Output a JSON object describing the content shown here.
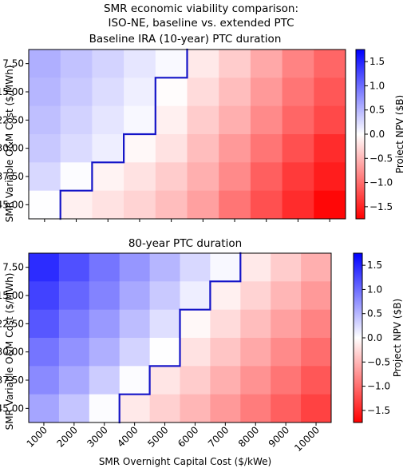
{
  "figure": {
    "suptitle_line1": "SMR economic viability comparison:",
    "suptitle_line2": "ISO-NE, baseline vs. extended PTC",
    "xlabel": "SMR Overnight Capital Cost ($/kWe)",
    "ylabel": "SMR Variable O&M Cost ($/MWh)"
  },
  "colorbar": {
    "label": "Project NPV ($B)",
    "range": [
      -1.75,
      1.75
    ],
    "ticks": [
      "1.5",
      "1.0",
      "0.5",
      "0.0",
      "−0.5",
      "−1.0",
      "−1.5"
    ],
    "tick_values": [
      1.5,
      1.0,
      0.5,
      0.0,
      -0.5,
      -1.0,
      -1.5
    ],
    "colors": {
      "negative": "#ff0000",
      "zero": "#ffffff",
      "positive": "#0000ff"
    }
  },
  "boundary_color": "#1414c8",
  "chart_data": [
    {
      "type": "heatmap",
      "title": "Baseline IRA (10-year) PTC duration",
      "x_categories": [
        "1000",
        "2000",
        "3000",
        "4000",
        "5000",
        "6000",
        "7000",
        "8000",
        "9000",
        "10000"
      ],
      "y_categories": [
        "7.50",
        "15.00",
        "22.50",
        "30.00",
        "37.50",
        "45.00"
      ],
      "values": [
        [
          0.55,
          0.42,
          0.3,
          0.17,
          0.04,
          -0.15,
          -0.35,
          -0.6,
          -0.85,
          -1.05
        ],
        [
          0.5,
          0.37,
          0.24,
          0.11,
          -0.02,
          -0.25,
          -0.45,
          -0.7,
          -0.95,
          -1.15
        ],
        [
          0.44,
          0.31,
          0.18,
          0.05,
          -0.1,
          -0.35,
          -0.55,
          -0.8,
          -1.05,
          -1.25
        ],
        [
          0.38,
          0.25,
          0.12,
          -0.05,
          -0.2,
          -0.45,
          -0.7,
          -0.95,
          -1.2,
          -1.45
        ],
        [
          0.27,
          0.02,
          -0.08,
          -0.2,
          -0.35,
          -0.55,
          -0.8,
          -1.1,
          -1.35,
          -1.55
        ],
        [
          0.01,
          -0.1,
          -0.2,
          -0.3,
          -0.45,
          -0.65,
          -0.95,
          -1.2,
          -1.45,
          -1.7
        ]
      ],
      "colorbar_label": "Project NPV ($B)",
      "vmin": -1.75,
      "vmax": 1.75,
      "boundary": "viability frontier (NPV = 0)"
    },
    {
      "type": "heatmap",
      "title": "80-year PTC duration",
      "x_categories": [
        "1000",
        "2000",
        "3000",
        "4000",
        "5000",
        "6000",
        "7000",
        "8000",
        "9000",
        "10000"
      ],
      "y_categories": [
        "7.50",
        "15.00",
        "22.50",
        "30.00",
        "37.50",
        "45.00"
      ],
      "values": [
        [
          1.45,
          1.2,
          0.95,
          0.72,
          0.5,
          0.27,
          0.05,
          -0.15,
          -0.35,
          -0.55
        ],
        [
          1.3,
          1.05,
          0.85,
          0.6,
          0.37,
          0.12,
          -0.1,
          -0.3,
          -0.5,
          -0.7
        ],
        [
          1.15,
          0.9,
          0.7,
          0.45,
          0.22,
          -0.05,
          -0.25,
          -0.45,
          -0.65,
          -0.85
        ],
        [
          0.95,
          0.75,
          0.55,
          0.3,
          0.01,
          -0.2,
          -0.4,
          -0.6,
          -0.8,
          -1.0
        ],
        [
          0.8,
          0.6,
          0.35,
          0.02,
          -0.18,
          -0.35,
          -0.55,
          -0.75,
          -0.95,
          -1.15
        ],
        [
          0.62,
          0.4,
          0.02,
          -0.15,
          -0.32,
          -0.5,
          -0.7,
          -0.9,
          -1.1,
          -1.3
        ]
      ],
      "colorbar_label": "Project NPV ($B)",
      "vmin": -1.75,
      "vmax": 1.75,
      "boundary": "viability frontier (NPV = 0)"
    }
  ]
}
